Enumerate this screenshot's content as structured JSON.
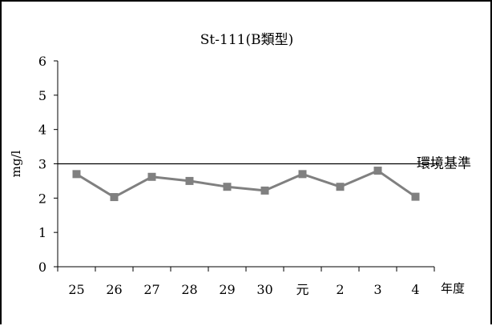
{
  "chart_data": {
    "type": "line",
    "title": "St-111(B類型)",
    "ylabel": "mg/l",
    "xlabel": "年度",
    "categories": [
      "25",
      "26",
      "27",
      "28",
      "29",
      "30",
      "元",
      "2",
      "3",
      "4"
    ],
    "series": [
      {
        "values": [
          2.7,
          2.03,
          2.62,
          2.5,
          2.33,
          2.22,
          2.7,
          2.33,
          2.8,
          2.04
        ],
        "color": "#808080",
        "marker": "square"
      }
    ],
    "ylim": [
      0,
      6
    ],
    "yticks": [
      "0",
      "1",
      "2",
      "3",
      "4",
      "5",
      "6"
    ],
    "reference_line": {
      "value": 3,
      "label": "環境基準",
      "color": "#000000"
    },
    "grid": false,
    "legend": "none"
  }
}
